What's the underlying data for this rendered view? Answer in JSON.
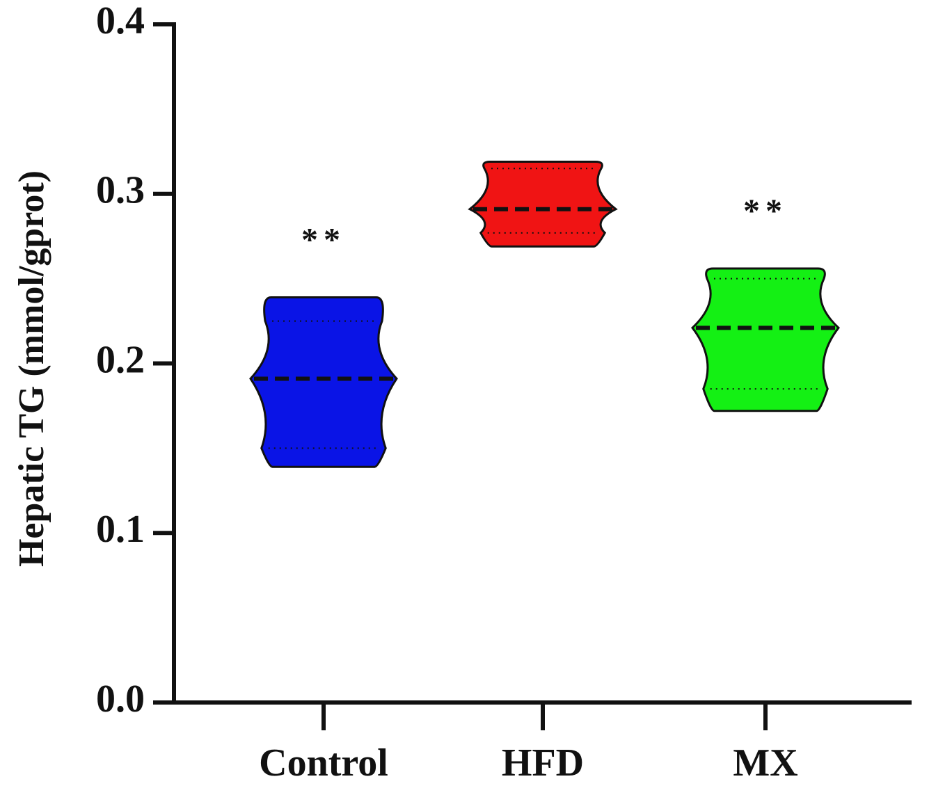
{
  "chart_data": {
    "type": "violin",
    "y_label": "Hepatic TG (mmol/gprot)",
    "categories": [
      "Control",
      "HFD",
      "MX"
    ],
    "series": [
      {
        "name": "Control",
        "color": "#0a14e6",
        "min": 0.139,
        "q1": 0.15,
        "median": 0.191,
        "q3": 0.225,
        "max": 0.239,
        "annotation": "**"
      },
      {
        "name": "HFD",
        "color": "#f01414",
        "min": 0.269,
        "q1": 0.277,
        "median": 0.291,
        "q3": 0.315,
        "max": 0.319
      },
      {
        "name": "MX",
        "color": "#14f014",
        "min": 0.172,
        "q1": 0.185,
        "median": 0.221,
        "q3": 0.25,
        "max": 0.256,
        "annotation": "**"
      }
    ],
    "ylim": [
      0,
      0.4
    ],
    "yticks": [
      {
        "value": 0,
        "label": "0.0"
      },
      0.1,
      0.2,
      0.3,
      0.4
    ]
  }
}
